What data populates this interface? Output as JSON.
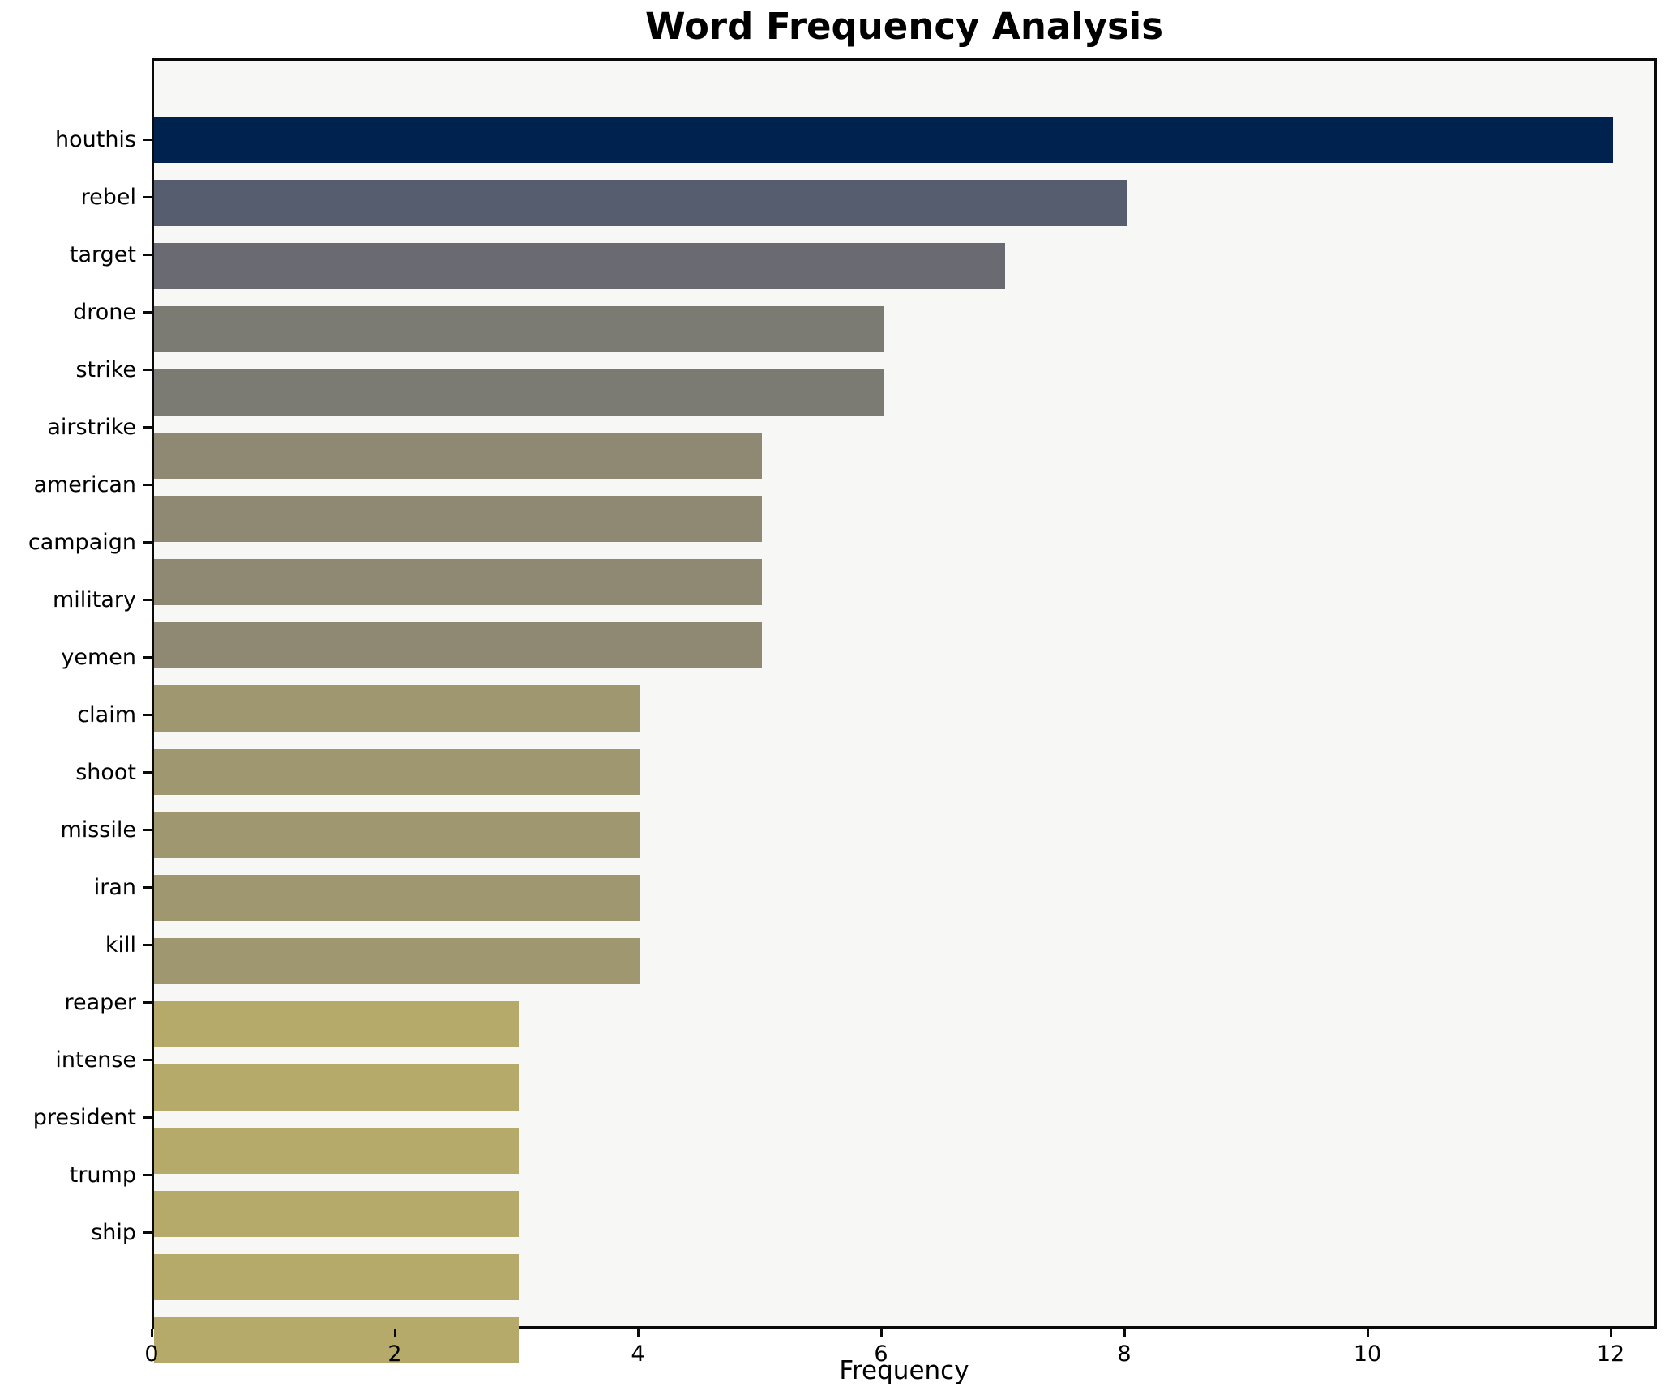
{
  "title": "Word Frequency Analysis",
  "chart_data": {
    "type": "bar",
    "orientation": "horizontal",
    "title": "Word Frequency Analysis",
    "xlabel": "Frequency",
    "ylabel": "",
    "xlim": [
      0,
      12.4
    ],
    "x_ticks": [
      0,
      2,
      4,
      6,
      8,
      10,
      12
    ],
    "grid": false,
    "legend": false,
    "categories": [
      "houthis",
      "rebel",
      "target",
      "drone",
      "strike",
      "airstrike",
      "american",
      "campaign",
      "military",
      "yemen",
      "claim",
      "shoot",
      "missile",
      "iran",
      "kill",
      "reaper",
      "intense",
      "president",
      "trump",
      "ship"
    ],
    "values": [
      12,
      8,
      7,
      6,
      6,
      5,
      5,
      5,
      5,
      4,
      4,
      4,
      4,
      4,
      3,
      3,
      3,
      3,
      3,
      3
    ],
    "bar_colors": [
      "#00224e",
      "#565d6f",
      "#6a6b72",
      "#7b7a73",
      "#7b7a73",
      "#8f8873",
      "#8f8873",
      "#8f8873",
      "#8f8873",
      "#9f976f",
      "#9f976f",
      "#9f976f",
      "#9f976f",
      "#9f976f",
      "#b5aa6a",
      "#b5aa6a",
      "#b5aa6a",
      "#b5aa6a",
      "#b5aa6a",
      "#b5aa6a"
    ],
    "colors": {
      "plot_background": "#f7f7f6",
      "figure_background": "#ffffff",
      "spine": "#0a0a0a",
      "text": "#000000"
    }
  }
}
